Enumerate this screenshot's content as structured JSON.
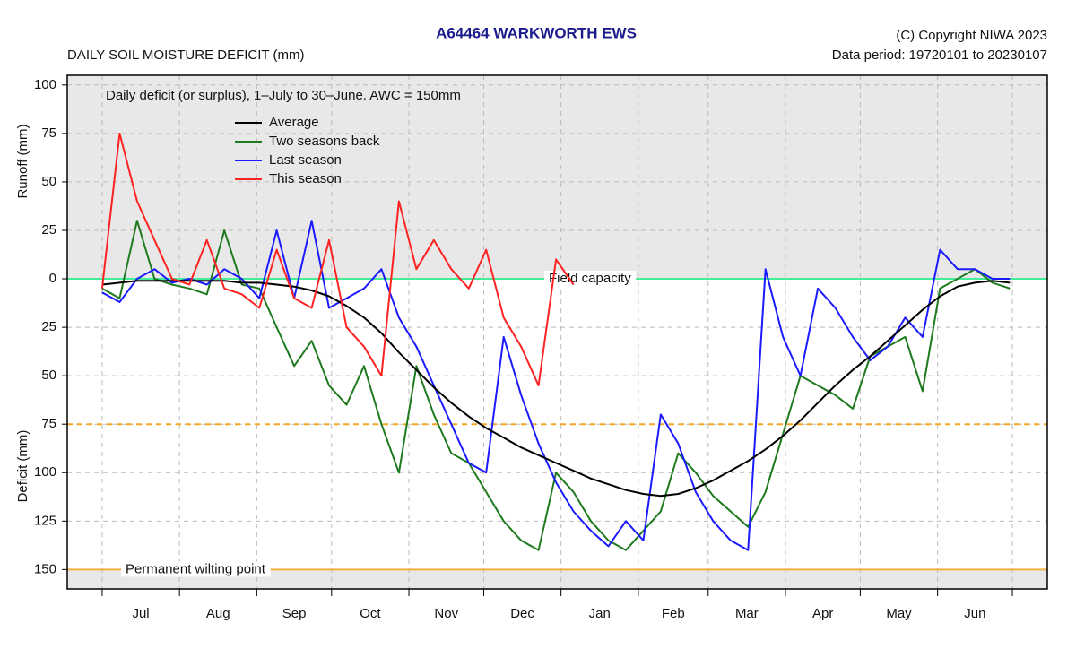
{
  "chart_data": {
    "type": "line",
    "title": "A64464  WARKWORTH EWS",
    "subtitle": "DAILY SOIL MOISTURE DEFICIT (mm)",
    "copyright": "(C) Copyright NIWA  2023",
    "data_period": "Data period:  19720101  to  20230107",
    "annotation": "Daily deficit (or surplus), 1–July to 30–June.  AWC = 150mm",
    "y_label_upper": "Runoff (mm)",
    "y_label_lower": "Deficit (mm)",
    "categories": [
      "Jul",
      "Aug",
      "Sep",
      "Oct",
      "Nov",
      "Dec",
      "Jan",
      "Feb",
      "Mar",
      "Apr",
      "May",
      "Jun"
    ],
    "xticks": [
      0,
      31,
      62,
      92,
      123,
      153,
      184,
      215,
      243,
      274,
      304,
      335,
      365
    ],
    "xlim": [
      -14,
      379
    ],
    "ylim": [
      -160,
      105
    ],
    "yticks": [
      100,
      75,
      50,
      25,
      0,
      {
        "value": -25,
        "label": "25"
      },
      {
        "value": -50,
        "label": "50"
      },
      {
        "value": -75,
        "label": "75"
      },
      {
        "value": -100,
        "label": "100"
      },
      {
        "value": -125,
        "label": "125"
      },
      {
        "value": -150,
        "label": "150"
      }
    ],
    "grid": true,
    "reference_lines": [
      {
        "value": 0,
        "label": "Field capacity",
        "color": "#44ee99",
        "style": "solid"
      },
      {
        "value": -75,
        "color": "#f5a623",
        "style": "dashed"
      },
      {
        "value": -150,
        "label": "Permanent wilting point",
        "color": "#f5b041",
        "style": "solid"
      }
    ],
    "x": [
      0,
      7,
      14,
      21,
      28,
      35,
      42,
      49,
      56,
      63,
      70,
      77,
      84,
      91,
      98,
      105,
      112,
      119,
      126,
      133,
      140,
      147,
      154,
      161,
      168,
      175,
      182,
      189,
      196,
      203,
      210,
      217,
      224,
      231,
      238,
      245,
      252,
      259,
      266,
      273,
      280,
      287,
      294,
      301,
      308,
      315,
      322,
      329,
      336,
      343,
      350,
      357,
      364
    ],
    "series": [
      {
        "name": "Average",
        "color": "#000000",
        "values": [
          -3,
          -2,
          -1,
          -1,
          -1,
          -1,
          -1,
          -1,
          -2,
          -2,
          -3,
          -4,
          -6,
          -9,
          -14,
          -20,
          -28,
          -38,
          -47,
          -56,
          -64,
          -71,
          -77,
          -82,
          -87,
          -91,
          -95,
          -99,
          -103,
          -106,
          -109,
          -111,
          -112,
          -111,
          -108,
          -104,
          -99,
          -94,
          -88,
          -81,
          -73,
          -64,
          -55,
          -47,
          -40,
          -32,
          -24,
          -16,
          -9,
          -4,
          -2,
          -1,
          -2
        ]
      },
      {
        "name": "Two seasons back",
        "color": "#1e7a1e",
        "values": [
          -5,
          -10,
          30,
          0,
          -3,
          -5,
          -8,
          25,
          -3,
          -5,
          -25,
          -45,
          -32,
          -55,
          -65,
          -45,
          -75,
          -100,
          -45,
          -70,
          -90,
          -95,
          -110,
          -125,
          -135,
          -140,
          -100,
          -110,
          -125,
          -135,
          -140,
          -130,
          -120,
          -90,
          -100,
          -112,
          -120,
          -128,
          -110,
          -80,
          -50,
          -55,
          -60,
          -67,
          -40,
          -35,
          -30,
          -58,
          -5,
          0,
          5,
          -2,
          -5
        ]
      },
      {
        "name": "Last season",
        "color": "#1a1aff",
        "values": [
          -7,
          -12,
          0,
          5,
          -2,
          0,
          -3,
          5,
          0,
          -10,
          25,
          -10,
          30,
          -15,
          -10,
          -5,
          5,
          -20,
          -35,
          -55,
          -75,
          -95,
          -100,
          -30,
          -60,
          -85,
          -105,
          -120,
          -130,
          -138,
          -125,
          -135,
          -70,
          -85,
          -110,
          -125,
          -135,
          -140,
          5,
          -30,
          -50,
          -5,
          -15,
          -30,
          -42,
          -35,
          -20,
          -30,
          15,
          5,
          5,
          0,
          0
        ]
      },
      {
        "name": "This season",
        "color": "#ff2222",
        "values": [
          -5,
          75,
          40,
          20,
          0,
          -3,
          20,
          -5,
          -8,
          -15,
          15,
          -10,
          -15,
          20,
          -25,
          -35,
          -50,
          40,
          5,
          20,
          5,
          -5,
          15,
          -20,
          -35,
          -55,
          10,
          -3,
          null,
          null,
          null,
          null,
          null,
          null,
          null,
          null,
          null,
          null,
          null,
          null,
          null,
          null,
          null,
          null,
          null,
          null,
          null,
          null,
          null,
          null,
          null,
          null,
          null
        ]
      }
    ]
  }
}
